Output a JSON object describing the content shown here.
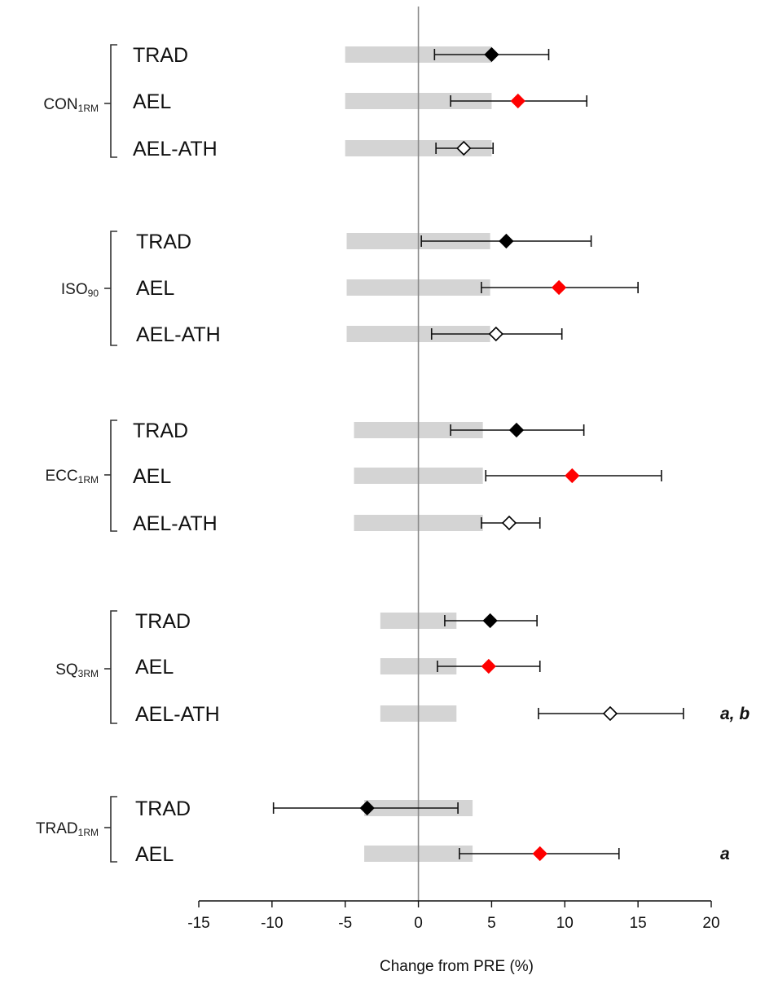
{
  "chart_data": {
    "type": "forest",
    "xlabel": "Change from PRE (%)",
    "xlim": [
      -15,
      20
    ],
    "xticks": [
      -15,
      -10,
      -5,
      0,
      5,
      10,
      15,
      20
    ],
    "marker_colors": {
      "TRAD": "#000000",
      "AEL": "#ff0000",
      "AEL-ATH": "#ffffff"
    },
    "groups": [
      {
        "main": "CON",
        "sub": "1RM",
        "band": [
          -5.0,
          5.0
        ],
        "rows": [
          {
            "label": "TRAD",
            "mean": 5.0,
            "ci": [
              1.1,
              8.9
            ],
            "annotation": ""
          },
          {
            "label": "AEL",
            "mean": 6.8,
            "ci": [
              2.2,
              11.5
            ],
            "annotation": ""
          },
          {
            "label": "AEL-ATH",
            "mean": 3.1,
            "ci": [
              1.2,
              5.1
            ],
            "annotation": ""
          }
        ]
      },
      {
        "main": "ISO",
        "sub": "90",
        "band": [
          -4.9,
          4.9
        ],
        "rows": [
          {
            "label": "TRAD",
            "mean": 6.0,
            "ci": [
              0.2,
              11.8
            ],
            "annotation": ""
          },
          {
            "label": "AEL",
            "mean": 9.6,
            "ci": [
              4.3,
              15.0
            ],
            "annotation": ""
          },
          {
            "label": "AEL-ATH",
            "mean": 5.3,
            "ci": [
              0.9,
              9.8
            ],
            "annotation": ""
          }
        ]
      },
      {
        "main": "ECC",
        "sub": "1RM",
        "band": [
          -4.4,
          4.4
        ],
        "rows": [
          {
            "label": "TRAD",
            "mean": 6.7,
            "ci": [
              2.2,
              11.3
            ],
            "annotation": ""
          },
          {
            "label": "AEL",
            "mean": 10.5,
            "ci": [
              4.6,
              16.6
            ],
            "annotation": ""
          },
          {
            "label": "AEL-ATH",
            "mean": 6.2,
            "ci": [
              4.3,
              8.3
            ],
            "annotation": ""
          }
        ]
      },
      {
        "main": "SQ",
        "sub": "3RM",
        "band": [
          -2.6,
          2.6
        ],
        "rows": [
          {
            "label": "TRAD",
            "mean": 4.9,
            "ci": [
              1.8,
              8.1
            ],
            "annotation": ""
          },
          {
            "label": "AEL",
            "mean": 4.8,
            "ci": [
              1.3,
              8.3
            ],
            "annotation": ""
          },
          {
            "label": "AEL-ATH",
            "mean": 13.1,
            "ci": [
              8.2,
              18.1
            ],
            "annotation": "a, b"
          }
        ]
      },
      {
        "main": "TRAD",
        "sub": "1RM",
        "band": [
          -3.7,
          3.7
        ],
        "rows": [
          {
            "label": "TRAD",
            "mean": -3.5,
            "ci": [
              -9.9,
              2.7
            ],
            "annotation": ""
          },
          {
            "label": "AEL",
            "mean": 8.3,
            "ci": [
              2.8,
              13.7
            ],
            "annotation": "a"
          }
        ]
      }
    ]
  }
}
